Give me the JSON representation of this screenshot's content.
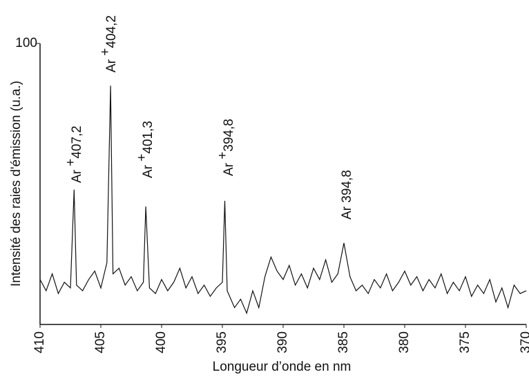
{
  "chart_data": {
    "type": "line",
    "y_label": "Intensité des raies d'émission (u.a.)",
    "x_label": "Longueur d’onde en nm",
    "xlim": [
      410,
      370
    ],
    "xticks": [
      410,
      405,
      400,
      395,
      390,
      385,
      380,
      375,
      370
    ],
    "ylim": [
      0,
      100
    ],
    "yticks": [
      100
    ],
    "color": "#111111",
    "x": [
      410,
      409.5,
      409,
      408.5,
      408,
      407.5,
      407.2,
      407,
      406.5,
      406,
      405.5,
      405,
      404.5,
      404.2,
      404,
      403.5,
      403,
      402.5,
      402,
      401.5,
      401.3,
      401,
      400.5,
      400,
      399.5,
      399,
      398.5,
      398,
      397.5,
      397,
      396.5,
      396,
      395.5,
      395,
      394.8,
      394.6,
      394,
      393.5,
      393,
      392.5,
      392,
      391.5,
      391,
      390.5,
      390,
      389.5,
      389,
      388.5,
      388,
      387.5,
      387,
      386.5,
      386,
      385.5,
      385,
      384.5,
      384,
      383.5,
      383,
      382.5,
      382,
      381.5,
      381,
      380.5,
      380,
      379.5,
      379,
      378.5,
      378,
      377.5,
      377,
      376.5,
      376,
      375.5,
      375,
      374.5,
      374,
      373.5,
      373,
      372.5,
      372,
      371.5,
      371,
      370.5,
      370
    ],
    "values": [
      16,
      12,
      18,
      11,
      15,
      13,
      48,
      14,
      12,
      16,
      19,
      13,
      22,
      85,
      18,
      20,
      14,
      17,
      12,
      15,
      42,
      13,
      11,
      16,
      12,
      15,
      20,
      13,
      17,
      11,
      14,
      10,
      13,
      15,
      44,
      12,
      6,
      9,
      4,
      12,
      6,
      17,
      24,
      19,
      16,
      21,
      14,
      18,
      13,
      20,
      16,
      23,
      15,
      18,
      29,
      17,
      12,
      14,
      11,
      16,
      13,
      18,
      12,
      15,
      19,
      14,
      17,
      12,
      16,
      13,
      18,
      11,
      15,
      12,
      17,
      10,
      14,
      11,
      16,
      8,
      13,
      6,
      14,
      11,
      12
    ],
    "annotations": [
      {
        "ion": "Ar",
        "charge": "+",
        "line": "407,2"
      },
      {
        "ion": "Ar",
        "charge": "+",
        "line": "404,2"
      },
      {
        "ion": "Ar",
        "charge": "+",
        "line": "401,3"
      },
      {
        "ion": "Ar",
        "charge": "+",
        "line": "394,8"
      },
      {
        "ion": "Ar",
        "line": "394,8"
      }
    ]
  }
}
